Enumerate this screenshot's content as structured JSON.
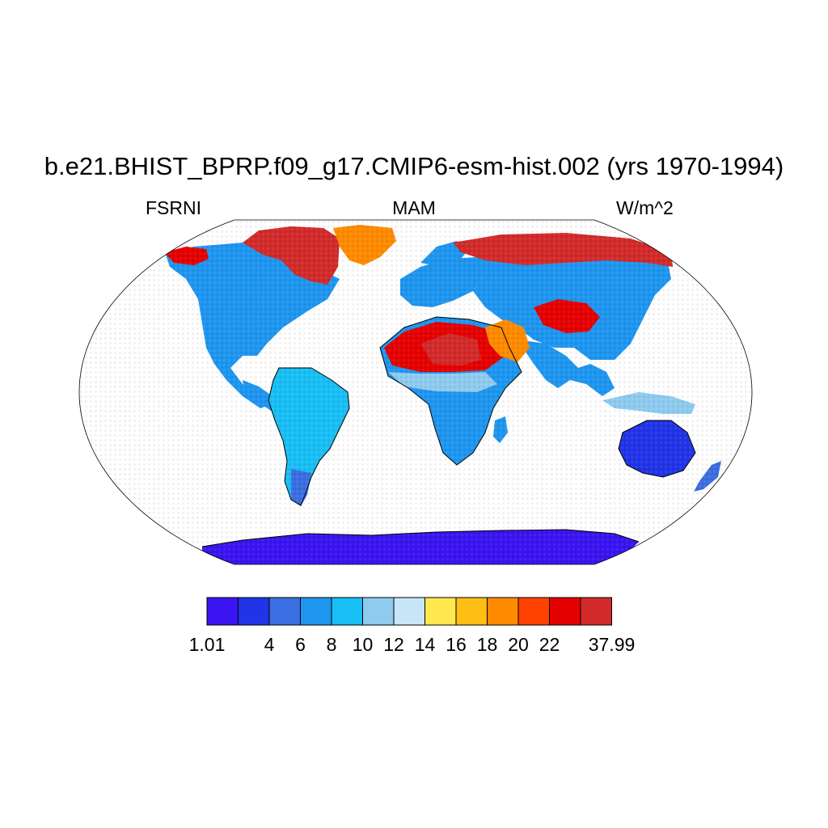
{
  "title": "b.e21.BHIST_BPRP.f09_g17.CMIP6-esm-hist.002 (yrs 1970-1994)",
  "left_label": "FSRNI",
  "center_label": "MAM",
  "right_label": "W/m^2",
  "colorbar": {
    "colors": [
      "#3a14f0",
      "#2134e8",
      "#3b6ee0",
      "#1e96f0",
      "#18bff5",
      "#8ecbef",
      "#c8e6f8",
      "#ffe84e",
      "#ffbe14",
      "#ff8a00",
      "#ff4200",
      "#e50000",
      "#d22a2a"
    ],
    "labels": [
      "1.01",
      "",
      "4",
      "6",
      "8",
      "10",
      "12",
      "14",
      "16",
      "18",
      "20",
      "22",
      "",
      "37.99"
    ]
  },
  "regions": [
    {
      "name": "north-america",
      "level": 3
    },
    {
      "name": "canadian-arctic",
      "level": 12
    },
    {
      "name": "greenland",
      "level": 9
    },
    {
      "name": "alaska-coast",
      "level": 11
    },
    {
      "name": "south-america",
      "level": 4
    },
    {
      "name": "patagonia",
      "level": 2
    },
    {
      "name": "europe",
      "level": 3
    },
    {
      "name": "scandinavia",
      "level": 3
    },
    {
      "name": "siberia-north",
      "level": 12
    },
    {
      "name": "eurasia-interior",
      "level": 3
    },
    {
      "name": "central-asia-desert",
      "level": 11
    },
    {
      "name": "sahara",
      "level": 11
    },
    {
      "name": "sahara-core",
      "level": 12
    },
    {
      "name": "arabia",
      "level": 9
    },
    {
      "name": "sahel",
      "level": 5
    },
    {
      "name": "africa-south",
      "level": 3
    },
    {
      "name": "madagascar",
      "level": 3
    },
    {
      "name": "india-se-asia",
      "level": 3
    },
    {
      "name": "maritime-continent",
      "level": 5
    },
    {
      "name": "australia",
      "level": 1
    },
    {
      "name": "new-zealand",
      "level": 2
    },
    {
      "name": "antarctica",
      "level": 0
    }
  ]
}
